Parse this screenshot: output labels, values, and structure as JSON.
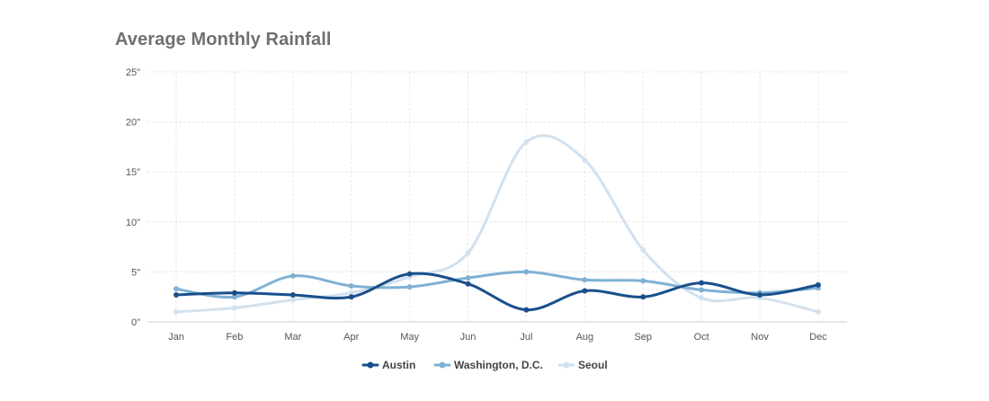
{
  "chart_data": {
    "type": "line",
    "title": "Average Monthly Rainfall",
    "categories": [
      "Jan",
      "Feb",
      "Mar",
      "Apr",
      "May",
      "Jun",
      "Jul",
      "Aug",
      "Sep",
      "Oct",
      "Nov",
      "Dec"
    ],
    "ylim": [
      0,
      25
    ],
    "yticks": [
      0,
      5,
      10,
      15,
      20,
      25
    ],
    "ytick_labels": [
      "0\"",
      "5\"",
      "10\"",
      "15\"",
      "20\"",
      "25\""
    ],
    "grid": true,
    "legend": "bottom",
    "series": [
      {
        "name": "Austin",
        "color": "#1a4f8b",
        "values": [
          2.7,
          2.9,
          2.7,
          2.5,
          4.8,
          3.8,
          1.2,
          3.1,
          2.5,
          3.9,
          2.7,
          3.7
        ]
      },
      {
        "name": "Washington, D.C.",
        "color": "#7fb1d3",
        "values": [
          3.3,
          2.5,
          4.6,
          3.6,
          3.5,
          4.4,
          5.0,
          4.2,
          4.1,
          3.2,
          2.9,
          3.4
        ]
      },
      {
        "name": "Seoul",
        "color": "#d2e1ef",
        "values": [
          1.0,
          1.4,
          2.2,
          2.9,
          4.5,
          6.9,
          18.0,
          16.2,
          7.2,
          2.4,
          2.4,
          1.0
        ]
      }
    ]
  }
}
